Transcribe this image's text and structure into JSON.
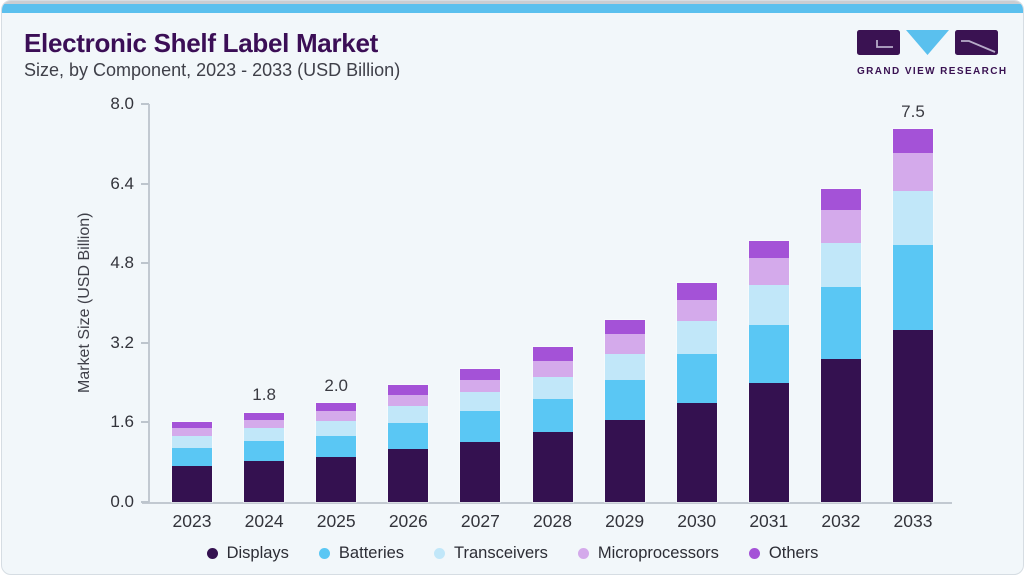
{
  "header": {
    "title": "Electronic Shelf Label Market",
    "subtitle": "Size, by Component, 2023 - 2033 (USD Billion)"
  },
  "logo": {
    "text": "GRAND VIEW RESEARCH"
  },
  "colors": {
    "accent_bar": "#5bc0ee",
    "title": "#3b0e56",
    "logo_purple": "#3a1252",
    "logo_blue": "#5ac0ee",
    "card_background": "#f2f7fa"
  },
  "chart_data": {
    "type": "bar",
    "stacked": true,
    "ylabel": "Market Size (USD Billion)",
    "xlabel": "",
    "ylim": [
      0,
      8.0
    ],
    "yticks": [
      0.0,
      1.6,
      3.2,
      4.8,
      6.4,
      8.0
    ],
    "ytick_labels": [
      "0.0",
      "1.6",
      "3.2",
      "4.8",
      "6.4",
      "8.0"
    ],
    "grid": false,
    "legend_position": "bottom",
    "categories": [
      "2023",
      "2024",
      "2025",
      "2026",
      "2027",
      "2028",
      "2029",
      "2030",
      "2031",
      "2032",
      "2033"
    ],
    "series": [
      {
        "name": "Displays",
        "color": "#341150",
        "values": [
          0.72,
          0.82,
          0.9,
          1.06,
          1.2,
          1.4,
          1.65,
          2.0,
          2.4,
          2.88,
          3.45
        ]
      },
      {
        "name": "Batteries",
        "color": "#5ac7f4",
        "values": [
          0.36,
          0.4,
          0.43,
          0.52,
          0.62,
          0.68,
          0.8,
          0.98,
          1.16,
          1.44,
          1.71
        ]
      },
      {
        "name": "Transceivers",
        "color": "#c1e7f9",
        "values": [
          0.24,
          0.26,
          0.29,
          0.36,
          0.39,
          0.44,
          0.53,
          0.66,
          0.81,
          0.89,
          1.09
        ]
      },
      {
        "name": "Microprocessors",
        "color": "#d4aaeb",
        "values": [
          0.16,
          0.17,
          0.21,
          0.22,
          0.25,
          0.31,
          0.39,
          0.43,
          0.54,
          0.67,
          0.77
        ]
      },
      {
        "name": "Others",
        "color": "#a452d7",
        "values": [
          0.12,
          0.15,
          0.17,
          0.19,
          0.22,
          0.29,
          0.29,
          0.33,
          0.34,
          0.42,
          0.48
        ]
      }
    ],
    "annotations": [
      {
        "category": "2024",
        "text": "1.8"
      },
      {
        "category": "2025",
        "text": "2.0"
      },
      {
        "category": "2033",
        "text": "7.5"
      }
    ]
  }
}
